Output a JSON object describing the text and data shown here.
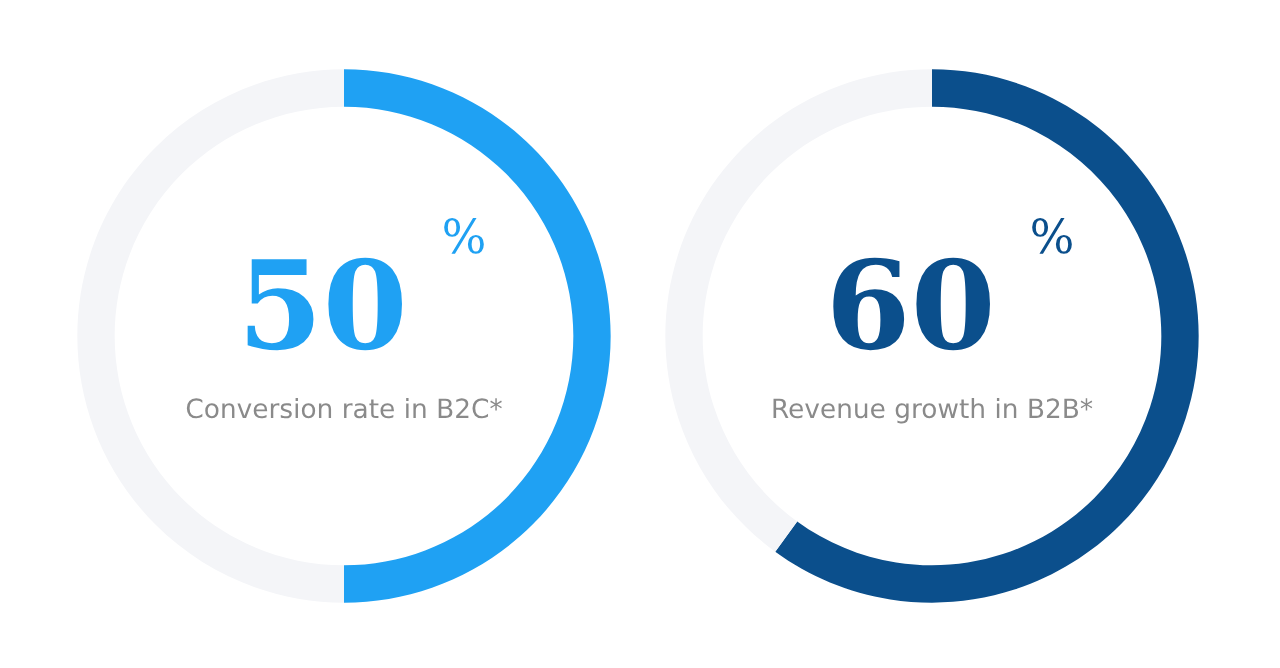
{
  "chart_data": [
    {
      "type": "donut",
      "categories": [
        null,
        null
      ],
      "values": [
        50,
        50
      ],
      "colors": [
        "#1fa1f3",
        "#f4f5f8"
      ],
      "value_labels": [
        "50 %",
        null
      ],
      "annotations": [
        "Conversion rate in B2C*"
      ]
    },
    {
      "type": "donut",
      "categories": [
        null,
        null
      ],
      "values": [
        60,
        40
      ],
      "colors": [
        "#0b4f8c",
        "#f4f5f8"
      ],
      "value_labels": [
        "60 %",
        null
      ],
      "annotations": [
        "Revenue growth in B2B*"
      ]
    }
  ]
}
